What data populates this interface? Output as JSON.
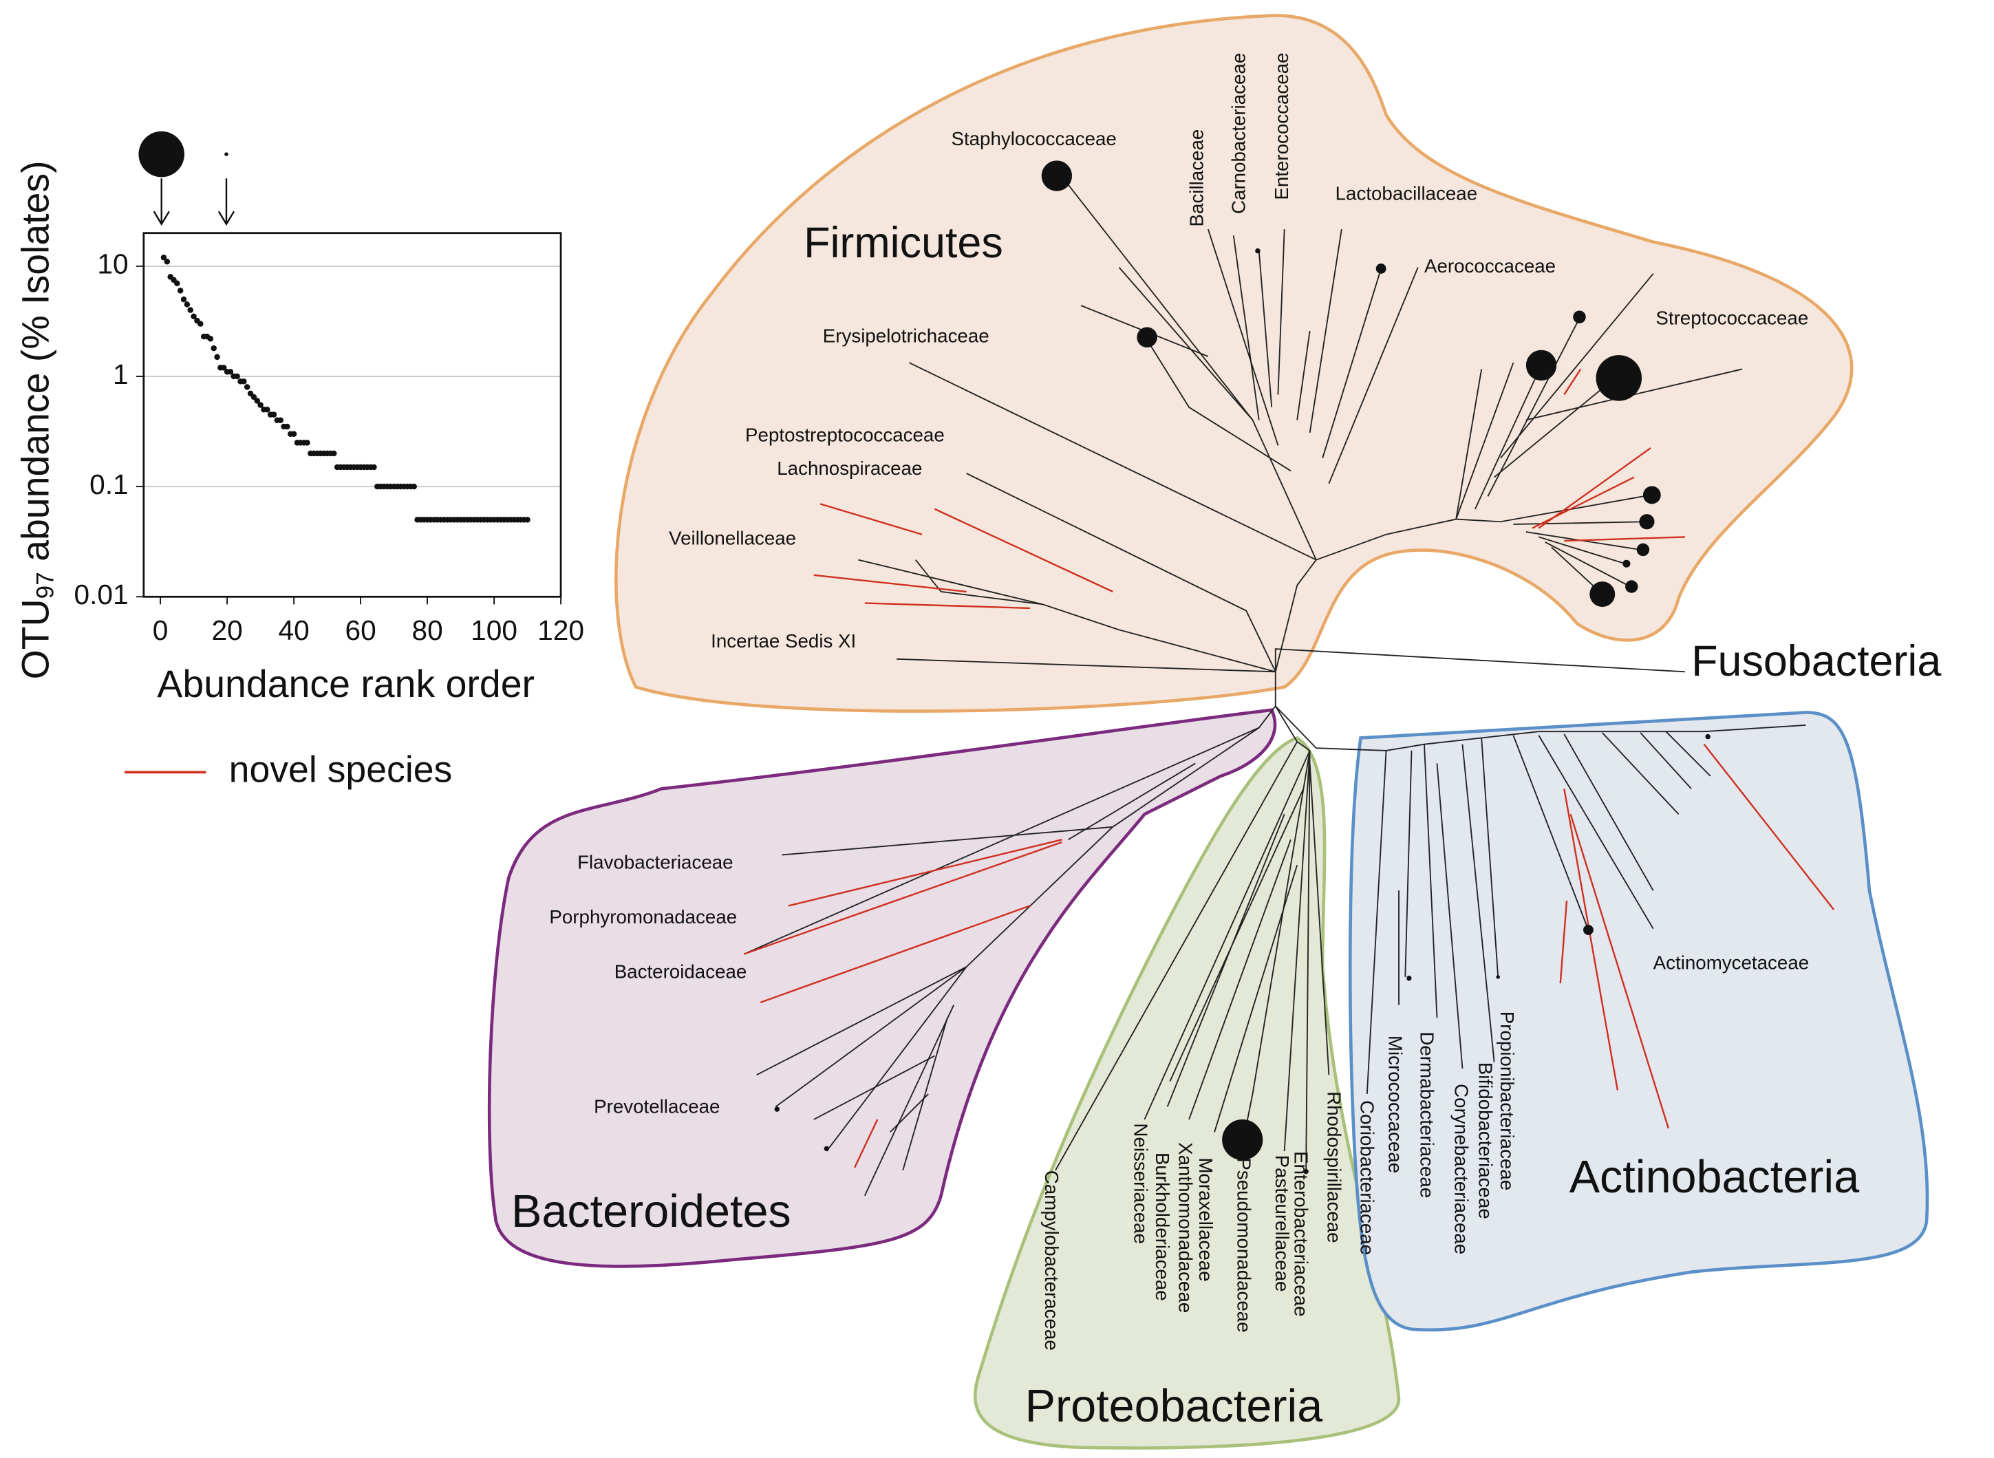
{
  "chart_data": {
    "type": "scatter",
    "xlabel": "Abundance rank order",
    "ylabel": {
      "main": "OTU",
      "subscript": "97",
      "rest": " abundance (% Isolates)"
    },
    "x": [
      1,
      2,
      3,
      4,
      5,
      6,
      7,
      8,
      9,
      10,
      11,
      12,
      13,
      14,
      15,
      16,
      17,
      18,
      19,
      20,
      21,
      22,
      23,
      24,
      25,
      26,
      27,
      28,
      29,
      30,
      31,
      32,
      33,
      34,
      35,
      36,
      37,
      38,
      39,
      40,
      41,
      42,
      43,
      44,
      45,
      46,
      47,
      48,
      49,
      50,
      51,
      52,
      53,
      54,
      55,
      56,
      57,
      58,
      59,
      60,
      61,
      62,
      63,
      64,
      65,
      66,
      67,
      68,
      69,
      70,
      71,
      72,
      73,
      74,
      75,
      76,
      77,
      78,
      79,
      80,
      81,
      82,
      83,
      84,
      85,
      86,
      87,
      88,
      89,
      90,
      91,
      92,
      93,
      94,
      95,
      96,
      97,
      98,
      99,
      100,
      101,
      102,
      103,
      104,
      105,
      106,
      107,
      108,
      109,
      110
    ],
    "values": [
      12,
      11,
      8,
      7.5,
      7,
      6,
      5,
      4.5,
      4,
      3.5,
      3.2,
      3,
      2.3,
      2.3,
      2.2,
      1.8,
      1.5,
      1.2,
      1.2,
      1.1,
      1.1,
      1,
      1,
      0.9,
      0.9,
      0.8,
      0.7,
      0.65,
      0.6,
      0.55,
      0.5,
      0.5,
      0.45,
      0.45,
      0.4,
      0.4,
      0.35,
      0.35,
      0.3,
      0.3,
      0.25,
      0.25,
      0.25,
      0.25,
      0.2,
      0.2,
      0.2,
      0.2,
      0.2,
      0.2,
      0.2,
      0.2,
      0.15,
      0.15,
      0.15,
      0.15,
      0.15,
      0.15,
      0.15,
      0.15,
      0.15,
      0.15,
      0.15,
      0.15,
      0.1,
      0.1,
      0.1,
      0.1,
      0.1,
      0.1,
      0.1,
      0.1,
      0.1,
      0.1,
      0.1,
      0.1,
      0.05,
      0.05,
      0.05,
      0.05,
      0.05,
      0.05,
      0.05,
      0.05,
      0.05,
      0.05,
      0.05,
      0.05,
      0.05,
      0.05,
      0.05,
      0.05,
      0.05,
      0.05,
      0.05,
      0.05,
      0.05,
      0.05,
      0.05,
      0.05,
      0.05,
      0.05,
      0.05,
      0.05,
      0.05,
      0.05,
      0.05,
      0.05,
      0.05,
      0.05
    ],
    "color": "#111111",
    "xlim": [
      -5,
      120
    ],
    "xticks": [
      0,
      20,
      40,
      60,
      80,
      100,
      120
    ],
    "ylim": [
      0.01,
      20
    ],
    "yticks": [
      0.01,
      0.1,
      1,
      10
    ],
    "yscale": "log",
    "grid": true
  },
  "tree": {
    "legend_label": "novel species",
    "legend_color": "#d03020",
    "clades": [
      {
        "name": "Firmicutes",
        "families": [
          "Staphylococcaceae",
          "Bacillaceae",
          "Carnobacteriaceae",
          "Enterococcaceae",
          "Lactobacillaceae",
          "Aerococcaceae",
          "Streptococcaceae",
          "Erysipelotrichaceae",
          "Peptostreptococcaceae",
          "Lachnospiraceae",
          "Veillonellaceae",
          "Incertae Sedis XI"
        ]
      },
      {
        "name": "Fusobacteria",
        "families": []
      },
      {
        "name": "Bacteroidetes",
        "families": [
          "Flavobacteriaceae",
          "Porphyromonadaceae",
          "Bacteroidaceae",
          "Prevotellaceae"
        ]
      },
      {
        "name": "Proteobacteria",
        "families": [
          "Campylobacteraceae",
          "Neisseriaceae",
          "Burkholderiaceae",
          "Xanthomonadaceae",
          "Moraxellaceae",
          "Pseudomonadaceae",
          "Pasteurellaceae",
          "Enterobacteriaceae",
          "Rhodospirillaceae"
        ]
      },
      {
        "name": "Actinobacteria",
        "families": [
          "Coriobacteriaceae",
          "Micrococcaceae",
          "Dermabacteriaceae",
          "Corynebacteriaceae",
          "Bifidobacteriaceae",
          "Propionibacteriaceae",
          "Actinomycetaceae"
        ]
      }
    ]
  }
}
